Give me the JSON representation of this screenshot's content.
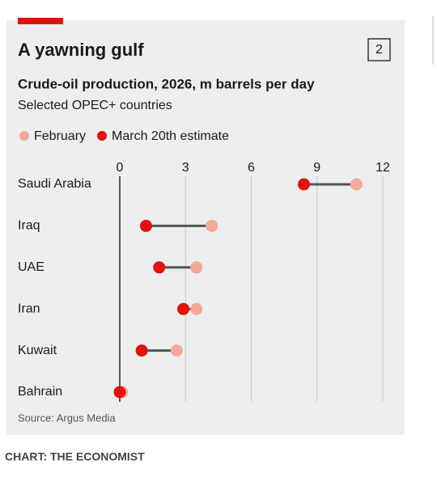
{
  "chart_data": {
    "type": "dumbbell",
    "title": "A yawning gulf",
    "badge": "2",
    "subtitle": "Crude-oil production, 2026, m barrels per day",
    "subtitle2": "Selected OPEC+ countries",
    "categories": [
      "Saudi Arabia",
      "Iraq",
      "UAE",
      "Iran",
      "Kuwait",
      "Bahrain"
    ],
    "series": [
      {
        "name": "February",
        "color": "#f4a896",
        "values": [
          10.8,
          4.2,
          3.5,
          3.5,
          2.6,
          0.1
        ]
      },
      {
        "name": "March 20th estimate",
        "color": "#e3120b",
        "values": [
          8.4,
          1.2,
          1.8,
          2.9,
          1.0,
          0
        ]
      }
    ],
    "xlim": [
      0,
      12
    ],
    "xticks": [
      0,
      3,
      6,
      9,
      12
    ],
    "grid": true,
    "source": "Source: Argus Media",
    "credit": "CHART: THE ECONOMIST"
  }
}
